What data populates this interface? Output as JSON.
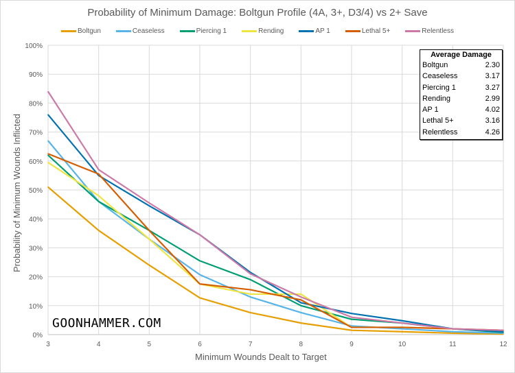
{
  "chart_data": {
    "type": "line",
    "title": "Probability of Minimum Damage: Boltgun Profile (4A, 3+, D3/4) vs 2+ Save",
    "xlabel": "Minimum Wounds Dealt to Target",
    "ylabel": "Probability of Minimum Wounds Inflicted",
    "x": [
      3,
      4,
      5,
      6,
      7,
      8,
      9,
      10,
      11,
      12
    ],
    "xlim": [
      3,
      12
    ],
    "ylim": [
      0,
      100
    ],
    "y_ticks": [
      "0%",
      "10%",
      "20%",
      "30%",
      "40%",
      "50%",
      "60%",
      "70%",
      "80%",
      "90%",
      "100%"
    ],
    "x_ticks": [
      "3",
      "4",
      "5",
      "6",
      "7",
      "8",
      "9",
      "10",
      "11",
      "12"
    ],
    "grid": true,
    "legend_position": "top",
    "series": [
      {
        "name": "Boltgun",
        "color": "#E69F00",
        "values": [
          51,
          36,
          24,
          12.7,
          7.6,
          4,
          1.5,
          1,
          0.5,
          0.2
        ]
      },
      {
        "name": "Ceaseless",
        "color": "#56B4E9",
        "values": [
          67,
          46,
          33,
          20.7,
          13,
          7.6,
          3,
          2,
          1,
          0.5
        ]
      },
      {
        "name": "Piercing 1",
        "color": "#009E73",
        "values": [
          62,
          46,
          36,
          25.5,
          19,
          10,
          5.3,
          4,
          2,
          0.8
        ]
      },
      {
        "name": "Rending",
        "color": "#F0E442",
        "values": [
          59.5,
          48,
          33,
          17.5,
          14,
          14,
          2.5,
          2.5,
          2,
          1.5
        ]
      },
      {
        "name": "AP 1",
        "color": "#0072B2",
        "values": [
          76,
          55,
          44.5,
          34.5,
          21.5,
          11,
          7.3,
          4.8,
          2,
          1
        ]
      },
      {
        "name": "Lethal 5+",
        "color": "#D55E00",
        "values": [
          62.5,
          55.5,
          36,
          17.5,
          15.5,
          12,
          2.5,
          2.5,
          2,
          1.5
        ]
      },
      {
        "name": "Relentless",
        "color": "#CC79A7",
        "values": [
          84,
          57,
          45.5,
          34.5,
          21,
          13,
          6,
          4,
          2,
          1.5
        ]
      }
    ],
    "annotation_table": {
      "title": "Average Damage",
      "rows": [
        {
          "label": "Boltgun",
          "value": "2.30"
        },
        {
          "label": "Ceaseless",
          "value": "3.17"
        },
        {
          "label": "Piercing 1",
          "value": "3.27"
        },
        {
          "label": "Rending",
          "value": "2.99"
        },
        {
          "label": "AP 1",
          "value": "4.02"
        },
        {
          "label": "Lethal 5+",
          "value": "3.16"
        },
        {
          "label": "Relentless",
          "value": "4.26"
        }
      ]
    }
  },
  "watermark": "GOONHAMMER.COM"
}
